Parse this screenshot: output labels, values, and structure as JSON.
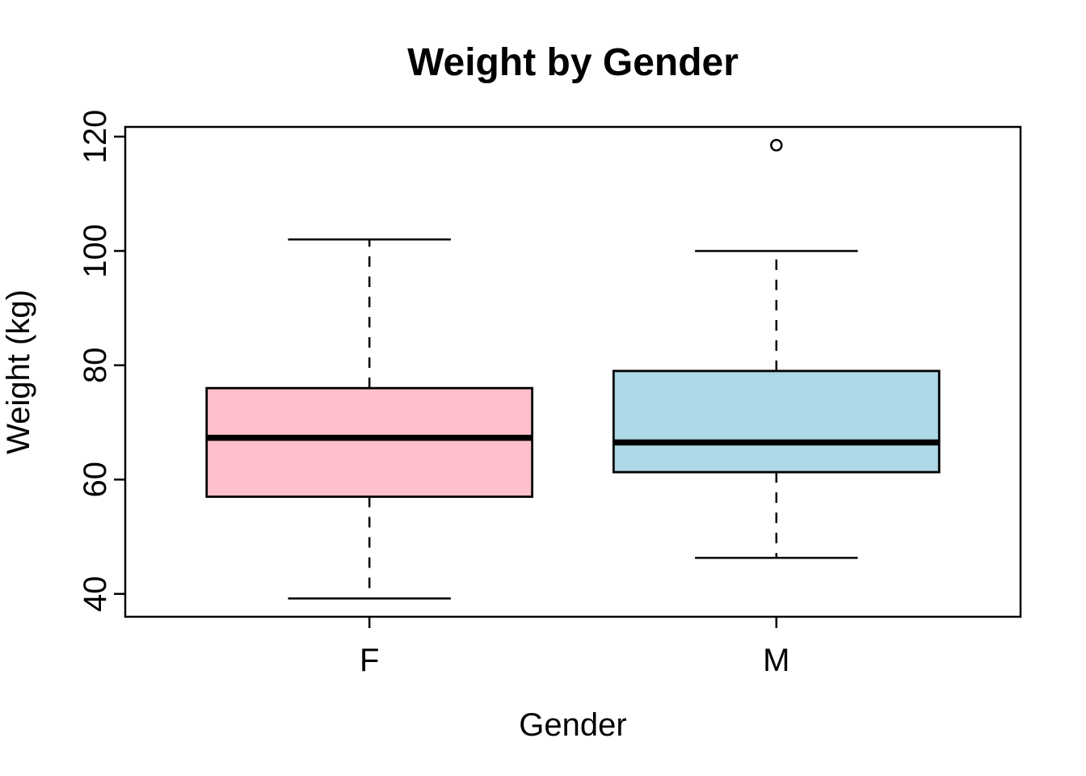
{
  "chart_data": {
    "type": "boxplot",
    "title": "Weight by Gender",
    "xlabel": "Gender",
    "ylabel": "Weight (kg)",
    "categories": [
      "F",
      "M"
    ],
    "y_ticks": [
      40,
      60,
      80,
      100,
      120
    ],
    "ylim": [
      36,
      121.7
    ],
    "grid": false,
    "legend": "none",
    "orientation": "vertical",
    "series": [
      {
        "name": "F",
        "color": "#FFC0CB",
        "whisker_low": 39.2,
        "q1": 57,
        "median": 67.3,
        "q3": 76,
        "whisker_high": 102,
        "outliers": []
      },
      {
        "name": "M",
        "color": "#ADD8E6",
        "whisker_low": 46.3,
        "q1": 61.3,
        "median": 66.5,
        "q3": 79,
        "whisker_high": 100,
        "outliers": [
          118.5
        ]
      }
    ],
    "colors": {
      "stroke": "#000000",
      "background": "#FFFFFF"
    }
  }
}
